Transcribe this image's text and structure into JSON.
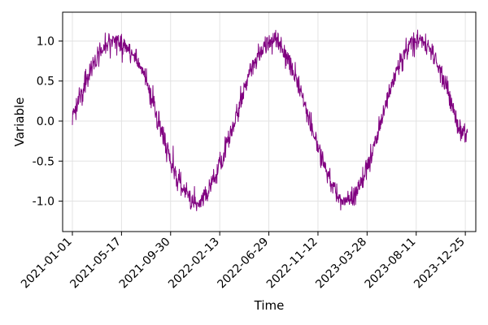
{
  "chart_data": {
    "type": "line",
    "xlabel": "Time",
    "ylabel": "Variable",
    "x_range": [
      "2020-12-05",
      "2024-01-23"
    ],
    "ylim": [
      -1.38,
      1.36
    ],
    "grid": true,
    "y_ticks": [
      -1.0,
      -0.5,
      0.0,
      0.5,
      1.0
    ],
    "y_tick_labels": [
      "-1.0",
      "-0.5",
      "0.0",
      "0.5",
      "1.0"
    ],
    "x_ticks": [
      "2021-01-01",
      "2021-05-17",
      "2021-09-30",
      "2022-02-13",
      "2022-06-29",
      "2022-11-12",
      "2023-03-28",
      "2023-08-11",
      "2023-12-25"
    ],
    "series": [
      {
        "color": "#800080",
        "x_start": "2021-01-01",
        "x_end": "2023-12-31",
        "x": [
          "2021-01-01",
          "2021-01-22",
          "2021-02-12",
          "2021-03-05",
          "2021-03-26",
          "2021-04-16",
          "2021-05-07",
          "2021-05-28",
          "2021-06-18",
          "2021-07-09",
          "2021-07-30",
          "2021-08-20",
          "2021-09-10",
          "2021-10-01",
          "2021-10-22",
          "2021-11-12",
          "2021-12-03",
          "2021-12-24",
          "2022-01-14",
          "2022-02-04",
          "2022-02-25",
          "2022-03-18",
          "2022-04-08",
          "2022-04-29",
          "2022-05-20",
          "2022-06-10",
          "2022-07-01",
          "2022-07-22",
          "2022-08-12",
          "2022-09-02",
          "2022-09-23",
          "2022-10-14",
          "2022-11-04",
          "2022-11-25",
          "2022-12-16",
          "2023-01-06",
          "2023-01-27",
          "2023-02-17",
          "2023-03-10",
          "2023-03-31",
          "2023-04-21",
          "2023-05-12",
          "2023-06-02",
          "2023-06-23",
          "2023-07-14",
          "2023-08-04",
          "2023-08-25",
          "2023-09-15",
          "2023-10-06",
          "2023-10-27",
          "2023-11-17",
          "2023-12-08",
          "2023-12-29"
        ],
        "y": [
          0.05,
          0.3,
          0.55,
          0.75,
          0.9,
          0.98,
          1.0,
          0.95,
          0.82,
          0.65,
          0.4,
          0.1,
          -0.2,
          -0.5,
          -0.75,
          -0.92,
          -1.0,
          -0.98,
          -0.85,
          -0.65,
          -0.4,
          -0.1,
          0.2,
          0.5,
          0.75,
          0.9,
          1.0,
          0.98,
          0.85,
          0.65,
          0.4,
          0.1,
          -0.2,
          -0.5,
          -0.75,
          -0.92,
          -1.0,
          -0.95,
          -0.8,
          -0.55,
          -0.25,
          0.1,
          0.4,
          0.65,
          0.85,
          0.97,
          1.0,
          0.92,
          0.75,
          0.5,
          0.2,
          -0.1,
          -0.15
        ]
      }
    ]
  }
}
